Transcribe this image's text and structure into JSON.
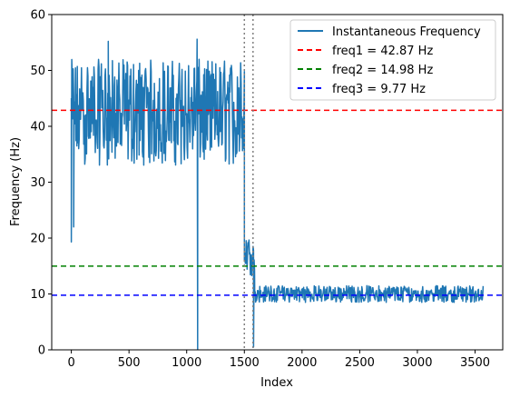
{
  "chart_data": {
    "type": "line",
    "title": "",
    "xlabel": "Index",
    "ylabel": "Frequency (Hz)",
    "xlim": [
      -170,
      3740
    ],
    "ylim": [
      0,
      60
    ],
    "xticks": [
      0,
      500,
      1000,
      1500,
      2000,
      2500,
      3000,
      3500
    ],
    "xtick_labels": [
      "0",
      "500",
      "1000",
      "1500",
      "2000",
      "2500",
      "3000",
      "3500"
    ],
    "yticks": [
      0,
      10,
      20,
      30,
      40,
      50,
      60
    ],
    "ytick_labels": [
      "0",
      "10",
      "20",
      "30",
      "40",
      "50",
      "60"
    ],
    "grid": false,
    "legend_position": "top-right",
    "series": [
      {
        "name": "Instantaneous Frequency",
        "color": "#1f77b4",
        "style": "solid",
        "segments": [
          {
            "x_start": 0,
            "x_end": 1500,
            "center": 42,
            "low": 33,
            "high": 52,
            "min_spike": 19.3,
            "max_spike": 55.6
          },
          {
            "x_start": 1500,
            "x_end": 1590,
            "center": 17,
            "low": 13,
            "high": 20
          },
          {
            "x_start": 1590,
            "x_end": 3570,
            "center": 10,
            "low": 8.5,
            "high": 11.5
          }
        ],
        "notable_points": [
          {
            "x": 0,
            "y": 19.3
          },
          {
            "x": 20,
            "y": 22
          },
          {
            "x": 320,
            "y": 55.2
          },
          {
            "x": 1090,
            "y": 55.6
          },
          {
            "x": 1095,
            "y": 0
          },
          {
            "x": 1580,
            "y": 0.5
          }
        ]
      }
    ],
    "hlines": [
      {
        "name": "freq1 = 42.87 Hz",
        "y": 42.87,
        "color": "#ff0000",
        "style": "dashed"
      },
      {
        "name": "freq2 = 14.98 Hz",
        "y": 14.98,
        "color": "#008000",
        "style": "dashed"
      },
      {
        "name": "freq3 = 9.77 Hz",
        "y": 9.77,
        "color": "#0000ff",
        "style": "dashed"
      }
    ],
    "vlines": [
      {
        "x": 1500,
        "color": "#808080",
        "style": "dotted"
      },
      {
        "x": 1575,
        "color": "#808080",
        "style": "dotted"
      }
    ],
    "legend": [
      "Instantaneous Frequency",
      "freq1 = 42.87 Hz",
      "freq2 = 14.98 Hz",
      "freq3 = 9.77 Hz"
    ]
  }
}
